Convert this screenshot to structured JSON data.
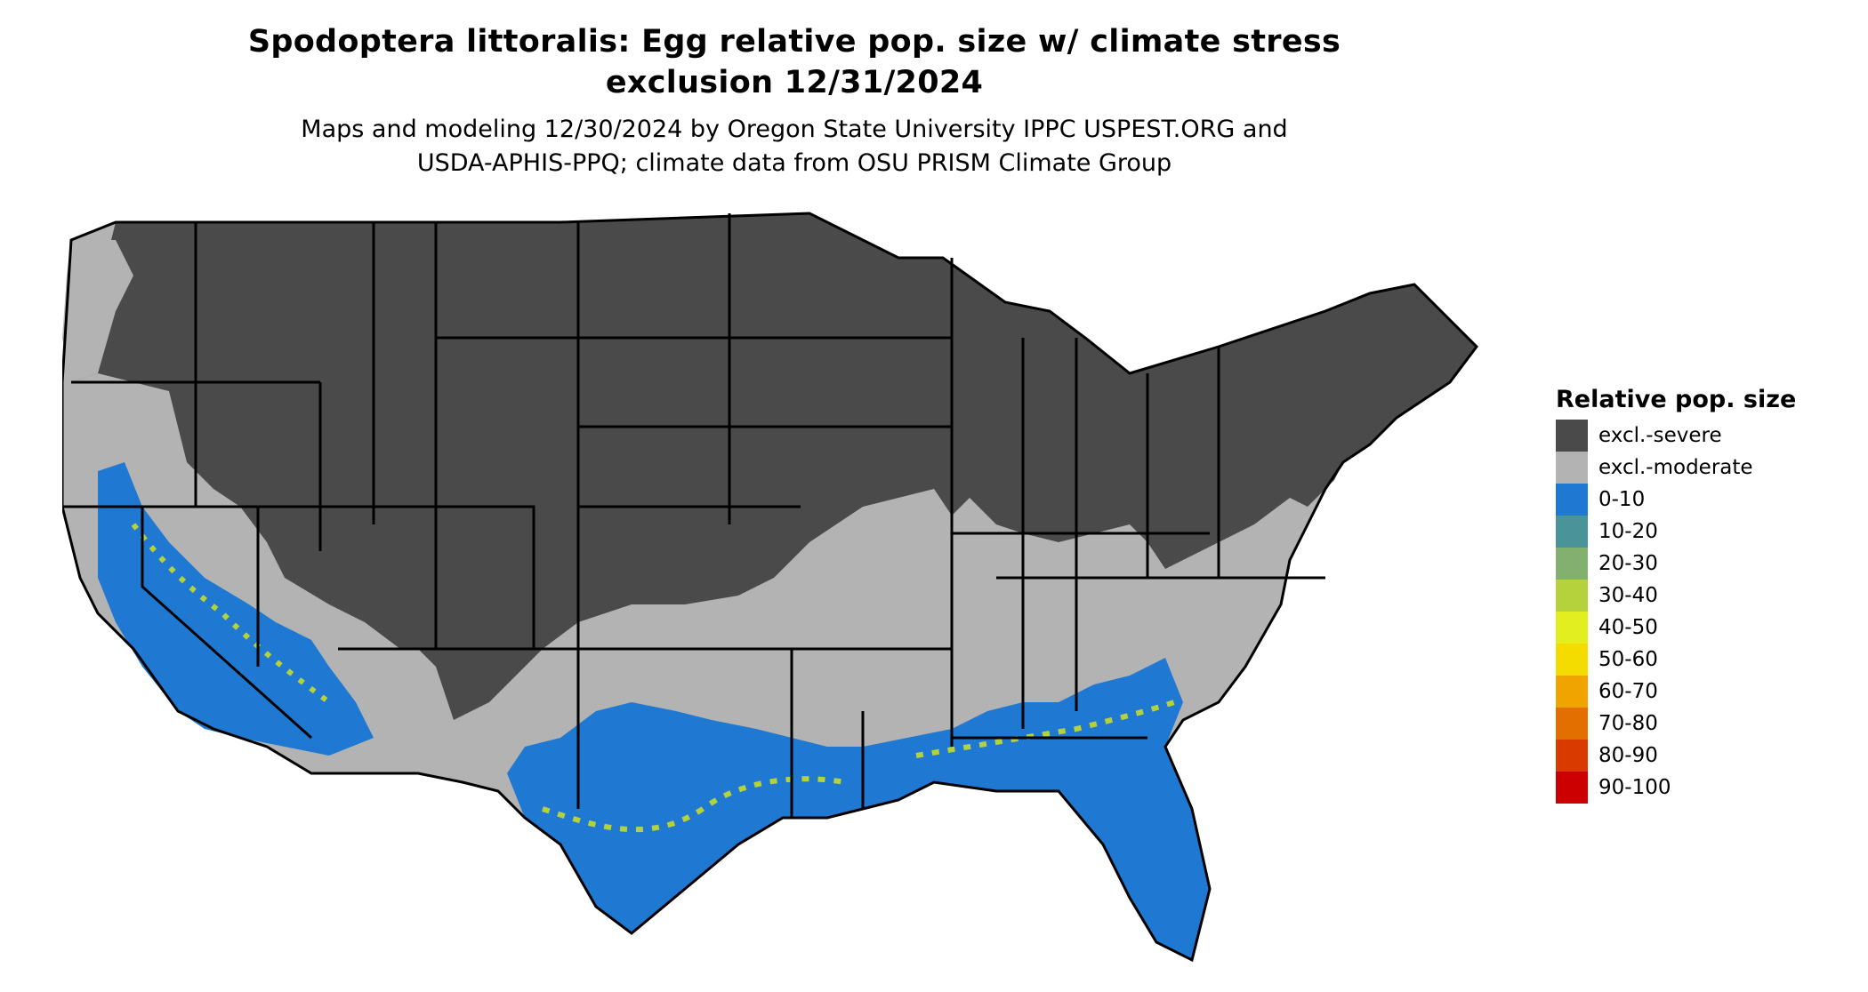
{
  "title": {
    "line1": "Spodoptera littoralis: Egg relative pop. size w/ climate stress",
    "line2": "exclusion 12/31/2024"
  },
  "subtitle": {
    "line1": "Maps and modeling 12/30/2024 by Oregon State University IPPC USPEST.ORG and",
    "line2": "USDA-APHIS-PPQ; climate data from OSU PRISM Climate Group"
  },
  "legend": {
    "title": "Relative pop. size",
    "items": [
      {
        "label": "excl.-severe",
        "color": "#4a4a4a"
      },
      {
        "label": "excl.-moderate",
        "color": "#b3b3b3"
      },
      {
        "label": "0-10",
        "color": "#1f78d1"
      },
      {
        "label": "10-20",
        "color": "#4a9499"
      },
      {
        "label": "20-30",
        "color": "#82b06e"
      },
      {
        "label": "30-40",
        "color": "#b5d13b"
      },
      {
        "label": "40-50",
        "color": "#e2ee1f"
      },
      {
        "label": "50-60",
        "color": "#f5dc00"
      },
      {
        "label": "60-70",
        "color": "#f0a400"
      },
      {
        "label": "70-80",
        "color": "#e36f00"
      },
      {
        "label": "80-90",
        "color": "#d93a00"
      },
      {
        "label": "90-100",
        "color": "#cc0000"
      }
    ]
  },
  "map": {
    "region": "Contiguous United States",
    "colors": {
      "severe": "#4a4a4a",
      "moderate": "#b3b3b3",
      "low": "#1f78d1",
      "mid": "#b5d13b",
      "border": "#000000"
    }
  }
}
